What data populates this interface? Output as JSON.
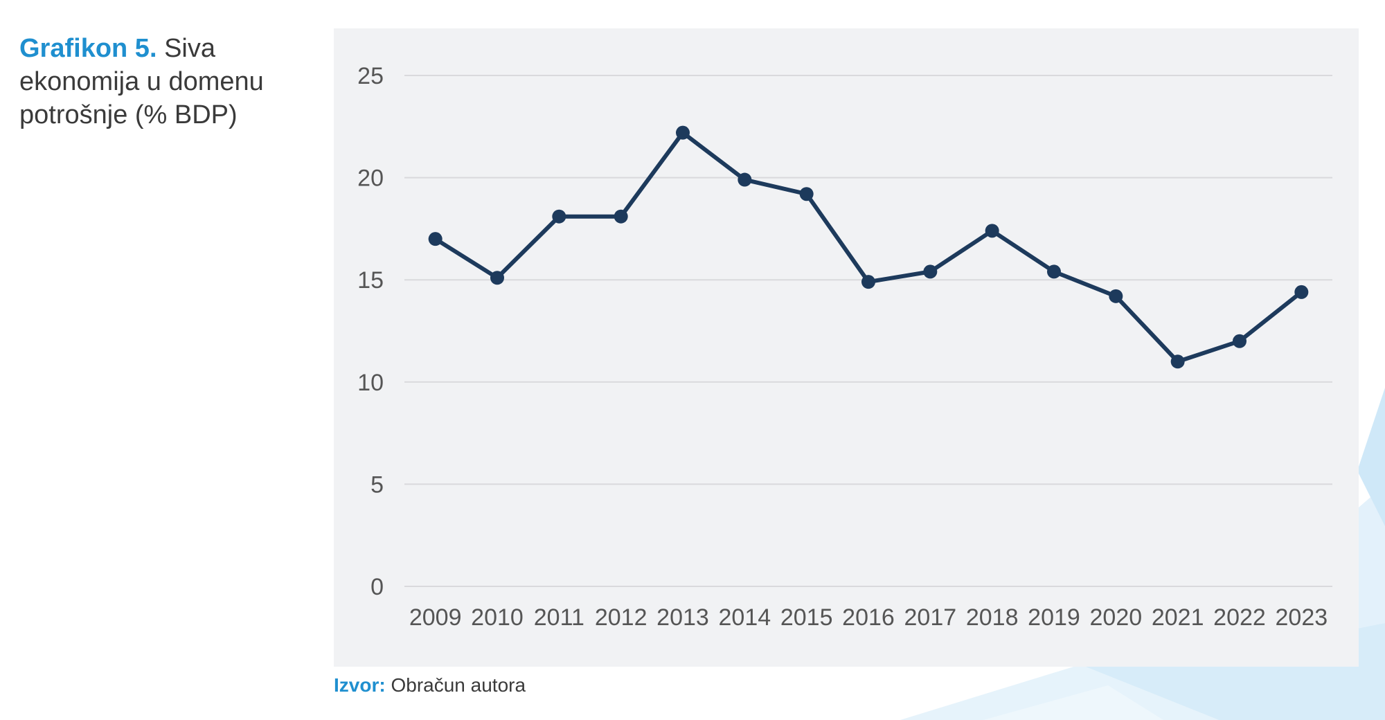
{
  "caption": {
    "label": "Grafikon 5.",
    "text": "Siva ekonomija u domenu potrošnje (% BDP)"
  },
  "source": {
    "label": "Izvor:",
    "text": "Obračun autora"
  },
  "colors": {
    "line": "#1d3a5c",
    "accent": "#1f8fcf",
    "panel_bg": "#f1f2f4",
    "grid": "#d9d9dc"
  },
  "chart_data": {
    "type": "line",
    "title": "Siva ekonomija u domenu potrošnje (% BDP)",
    "xlabel": "",
    "ylabel": "",
    "categories": [
      "2009",
      "2010",
      "2011",
      "2012",
      "2013",
      "2014",
      "2015",
      "2016",
      "2017",
      "2018",
      "2019",
      "2020",
      "2021",
      "2022",
      "2023"
    ],
    "series": [
      {
        "values": [
          17.0,
          15.1,
          18.1,
          18.1,
          22.2,
          19.9,
          19.2,
          14.9,
          15.4,
          17.4,
          15.4,
          14.2,
          11.0,
          12.0,
          14.4
        ]
      }
    ],
    "ylim": [
      0,
      25
    ],
    "yticks": [
      0,
      5,
      10,
      15,
      20,
      25
    ],
    "grid": true,
    "markers": true,
    "legend": "none"
  }
}
